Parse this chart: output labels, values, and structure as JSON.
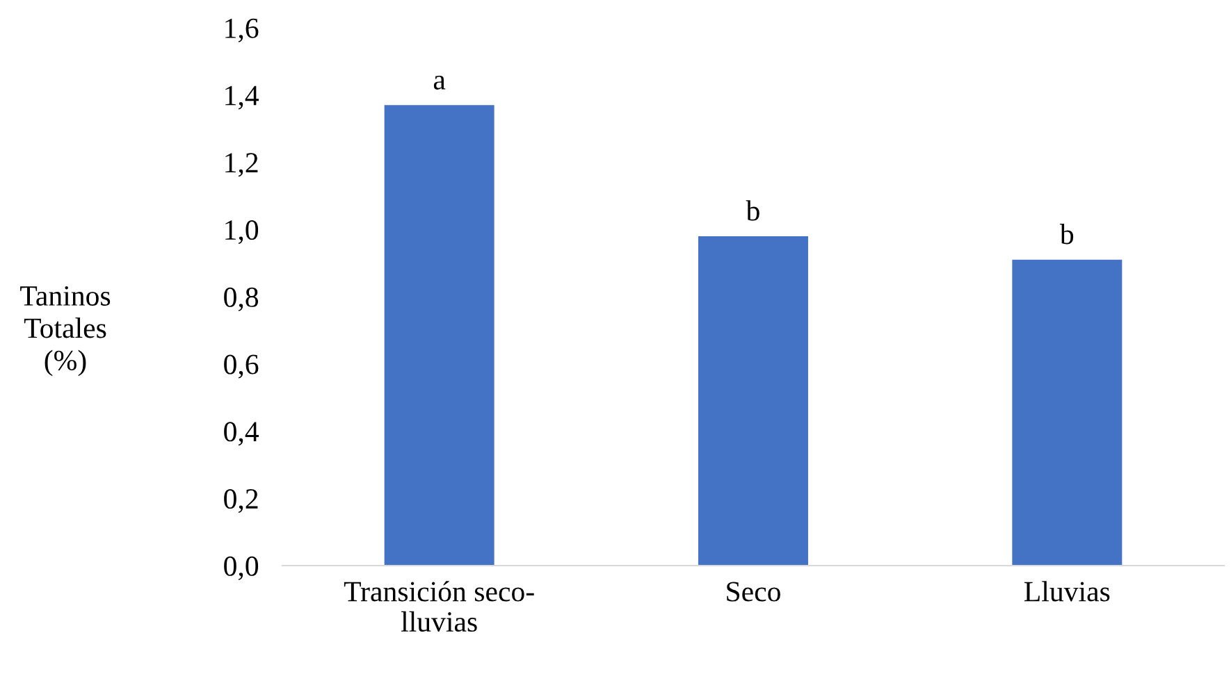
{
  "chart_data": {
    "type": "bar",
    "ylabel": "Taninos\nTotales\n(%)",
    "categories": [
      "Transición seco-\nlluvias",
      "Seco",
      "Lluvias"
    ],
    "values": [
      1.37,
      0.98,
      0.91
    ],
    "color": "#4472c4",
    "ylim": [
      0,
      1.6
    ],
    "yticks": [
      {
        "value": 0,
        "label": "0,0"
      },
      {
        "value": 0.2,
        "label": "0,2"
      },
      {
        "value": 0.4,
        "label": "0,4"
      },
      {
        "value": 0.6,
        "label": "0,6"
      },
      {
        "value": 0.8,
        "label": "0,8"
      },
      {
        "value": 1.0,
        "label": "1,0"
      },
      {
        "value": 1.2,
        "label": "1,2"
      },
      {
        "value": 1.4,
        "label": "1,4"
      },
      {
        "value": 1.6,
        "label": "1,6"
      }
    ],
    "annotations": [
      {
        "text": "a",
        "x": "Transición seco-\nlluvias",
        "y": 1.37
      },
      {
        "text": "b",
        "x": "Seco",
        "y": 0.98
      },
      {
        "text": "b",
        "x": "Lluvias",
        "y": 0.91
      }
    ]
  }
}
